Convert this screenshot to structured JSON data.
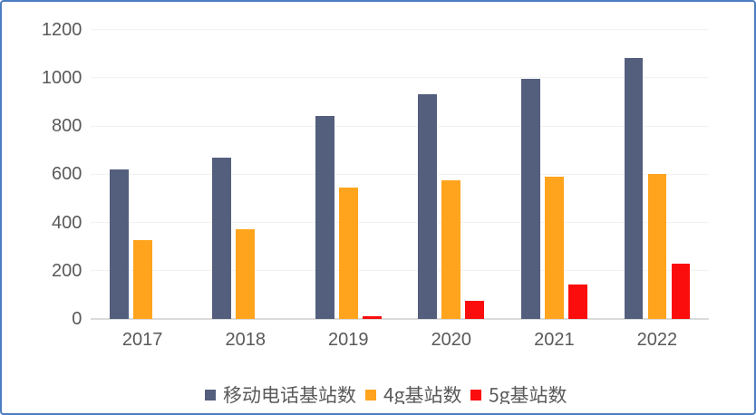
{
  "chart_data": {
    "type": "bar",
    "title": "",
    "xlabel": "",
    "ylabel": "",
    "categories": [
      "2017",
      "2018",
      "2019",
      "2020",
      "2021",
      "2022"
    ],
    "series": [
      {
        "name": "移动电话基站数",
        "color": "#545F7E",
        "values": [
          619,
          668,
          841,
          931,
          996,
          1083
        ]
      },
      {
        "name": "4g基站数",
        "color": "#FFA41C",
        "values": [
          328,
          372,
          544,
          575,
          590,
          603
        ]
      },
      {
        "name": "5g基站数",
        "color": "#FB0D0D",
        "values": [
          0,
          0,
          13,
          76,
          142,
          231
        ]
      }
    ],
    "ylim": [
      0,
      1200
    ],
    "yticks": [
      0,
      200,
      400,
      600,
      800,
      1000,
      1200
    ],
    "grid": true,
    "legend_position": "bottom"
  },
  "frame": {
    "border_color": "#4C7DBF",
    "background": "#FFFFFF"
  },
  "axis": {
    "label_color": "#595959",
    "line_color": "#DBDBDB",
    "grid_color": "#F2F2F2"
  }
}
